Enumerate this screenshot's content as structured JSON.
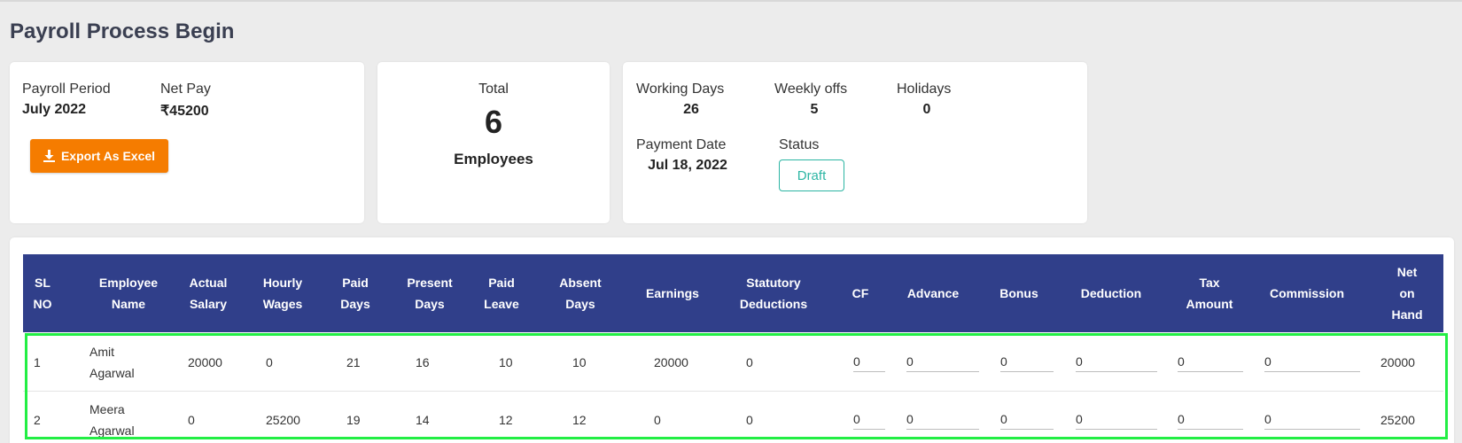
{
  "page_title": "Payroll Process Begin",
  "summary": {
    "payroll_period_label": "Payroll Period",
    "payroll_period_value": "July 2022",
    "net_pay_label": "Net Pay",
    "net_pay_value": "₹45200",
    "export_label": "Export As Excel",
    "export_icon": "download-icon",
    "total_label": "Total",
    "total_value": "6",
    "total_unit": "Employees",
    "working_days_label": "Working Days",
    "working_days_value": "26",
    "weekly_offs_label": "Weekly offs",
    "weekly_offs_value": "5",
    "holidays_label": "Holidays",
    "holidays_value": "0",
    "payment_date_label": "Payment Date",
    "payment_date_value": "Jul 18, 2022",
    "status_label": "Status",
    "status_value": "Draft"
  },
  "colors": {
    "header_bg": "#303f8a",
    "export_button": "#f57c00",
    "status_badge": "#2bb5a3",
    "highlight_box": "#22ee44"
  },
  "table": {
    "headers": [
      "SL\nNO",
      "Employee\nName",
      "Actual\nSalary",
      "Hourly\nWages",
      "Paid\nDays",
      "Present\nDays",
      "Paid\nLeave",
      "Absent\nDays",
      "Earnings",
      "Statutory\nDeductions",
      "CF",
      "Advance",
      "Bonus",
      "Deduction",
      "Tax\nAmount",
      "Commission",
      "Net\non\nHand"
    ],
    "rows": [
      {
        "sl": "1",
        "name": "Amit\nAgarwal",
        "actual_salary": "20000",
        "hourly_wages": "0",
        "paid_days": "21",
        "present_days": "16",
        "paid_leave": "10",
        "absent_days": "10",
        "earnings": "20000",
        "statutory": "0",
        "cf": "0",
        "advance": "0",
        "bonus": "0",
        "deduction": "0",
        "tax": "0",
        "commission": "0",
        "net": "20000"
      },
      {
        "sl": "2",
        "name": "Meera\nAgarwal",
        "actual_salary": "0",
        "hourly_wages": "25200",
        "paid_days": "19",
        "present_days": "14",
        "paid_leave": "12",
        "absent_days": "12",
        "earnings": "0",
        "statutory": "0",
        "cf": "0",
        "advance": "0",
        "bonus": "0",
        "deduction": "0",
        "tax": "0",
        "commission": "0",
        "net": "25200"
      }
    ]
  }
}
